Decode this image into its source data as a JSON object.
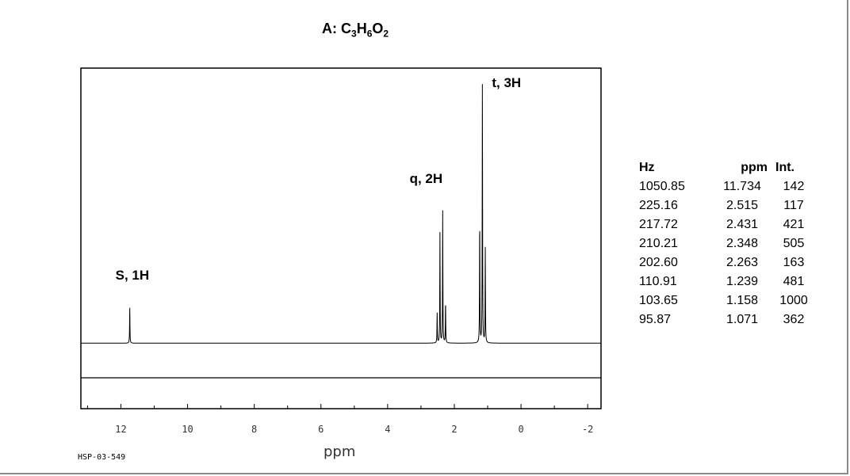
{
  "title": {
    "prefix": "A: C",
    "sub1": "3",
    "mid1": "H",
    "sub2": "6",
    "mid2": "O",
    "sub3": "2"
  },
  "spectrum_code": "HSP-03-549",
  "colors": {
    "trace": "#000000",
    "frame": "#000000",
    "background": "#ffffff"
  },
  "chart_data": {
    "type": "line",
    "title": "A: C3H6O2",
    "xlabel": "ppm",
    "ylabel": "",
    "x_reversed": true,
    "xlim": [
      13.2,
      -2.4
    ],
    "ylim": [
      -0.25,
      1.05
    ],
    "grid": false,
    "xticks": [
      12,
      10,
      8,
      6,
      4,
      2,
      0,
      -2
    ],
    "xtick_labels": [
      "12",
      "10",
      "8",
      "6",
      "4",
      "2",
      "0",
      "-2"
    ],
    "peak_labels": [
      {
        "text": "S, 1H",
        "ppm": 11.734
      },
      {
        "text": "q, 2H",
        "ppm": 2.39
      },
      {
        "text": "t, 3H",
        "ppm": 1.158
      }
    ],
    "peaks": [
      {
        "ppm": 11.734,
        "intensity": 142
      },
      {
        "ppm": 2.515,
        "intensity": 117
      },
      {
        "ppm": 2.431,
        "intensity": 421
      },
      {
        "ppm": 2.348,
        "intensity": 505
      },
      {
        "ppm": 2.263,
        "intensity": 163
      },
      {
        "ppm": 1.239,
        "intensity": 481
      },
      {
        "ppm": 1.158,
        "intensity": 1000
      },
      {
        "ppm": 1.071,
        "intensity": 362
      }
    ],
    "table": {
      "headers": [
        "Hz",
        "ppm",
        "Int."
      ],
      "rows": [
        [
          "1050.85",
          "11.734",
          "142"
        ],
        [
          "225.16",
          "2.515",
          "117"
        ],
        [
          "217.72",
          "2.431",
          "421"
        ],
        [
          "210.21",
          "2.348",
          "505"
        ],
        [
          "202.60",
          "2.263",
          "163"
        ],
        [
          "110.91",
          "1.239",
          "481"
        ],
        [
          "103.65",
          "1.158",
          "1000"
        ],
        [
          "95.87",
          "1.071",
          "362"
        ]
      ]
    }
  }
}
